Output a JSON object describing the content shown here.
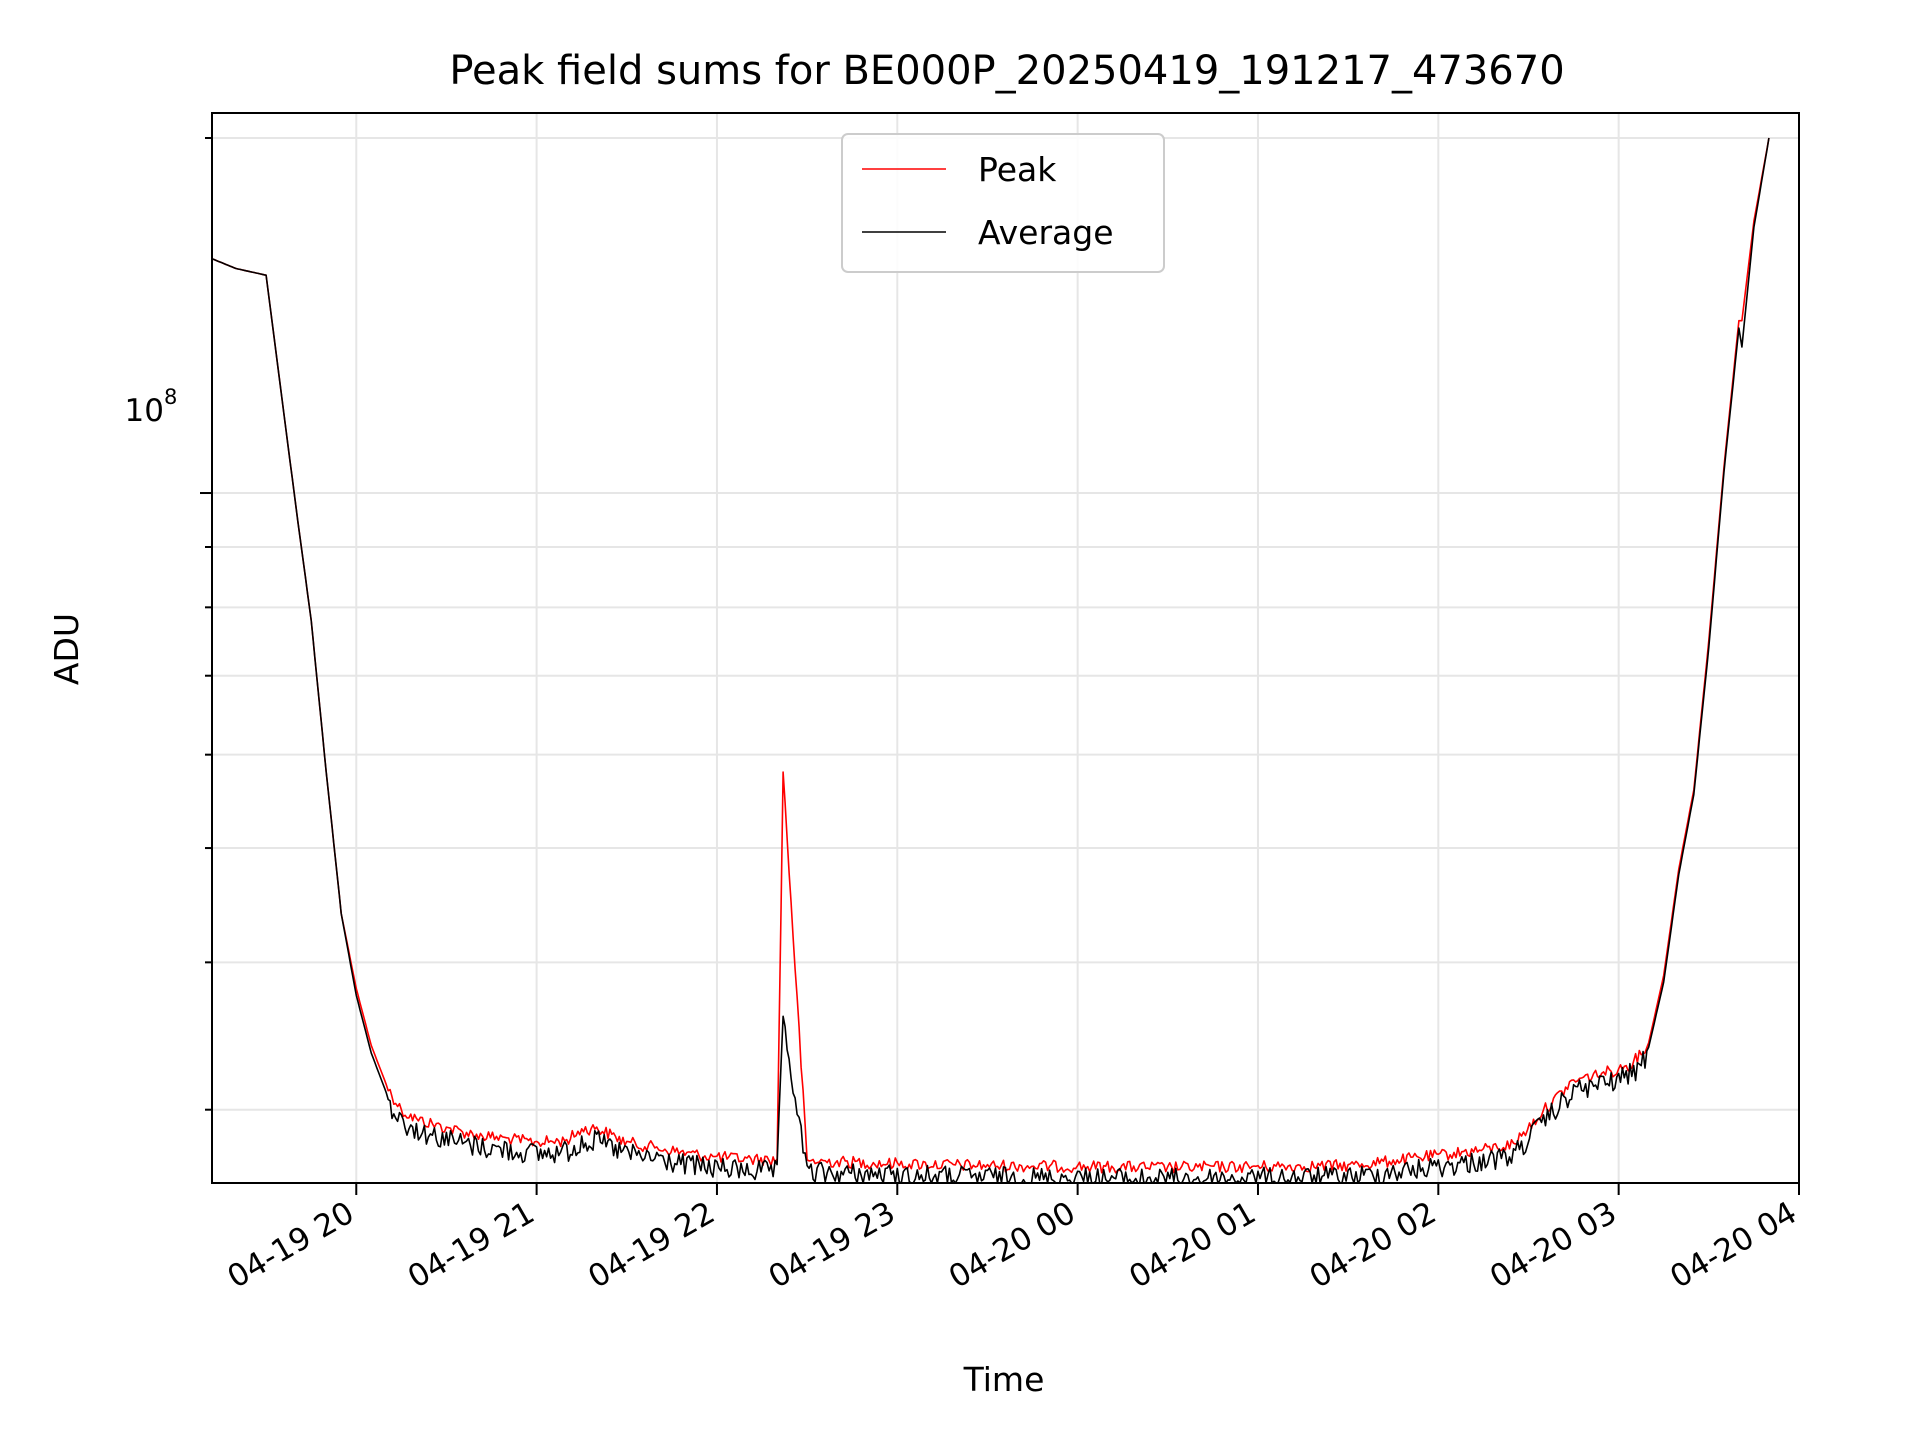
{
  "chart_data": {
    "type": "line",
    "title": "Peak field sums for BE000P_20250419_191217_473670",
    "xlabel": "Time",
    "ylabel": "ADU",
    "y_scale": "log",
    "y_tick_label": {
      "base": "10",
      "exponent": "8"
    },
    "x_ticks": [
      "04-19 20",
      "04-19 21",
      "04-19 22",
      "04-19 23",
      "04-20 00",
      "04-20 01",
      "04-20 02",
      "04-20 03",
      "04-20 04"
    ],
    "xlim": [
      "2025-04-19 19:12",
      "2025-04-20 04:00"
    ],
    "ylim": [
      26000000,
      210000000
    ],
    "grid": true,
    "legend_position": "upper center",
    "series": [
      {
        "name": "Peak",
        "color": "#ff0000",
        "x": [
          "2025-04-19 19:12",
          "2025-04-19 19:20",
          "2025-04-19 19:30",
          "2025-04-19 19:40",
          "2025-04-19 19:45",
          "2025-04-19 19:50",
          "2025-04-19 19:55",
          "2025-04-19 20:00",
          "2025-04-19 20:05",
          "2025-04-19 20:10",
          "2025-04-19 20:15",
          "2025-04-19 20:20",
          "2025-04-19 20:30",
          "2025-04-19 20:40",
          "2025-04-19 20:50",
          "2025-04-19 21:00",
          "2025-04-19 21:10",
          "2025-04-19 21:15",
          "2025-04-19 21:20",
          "2025-04-19 21:25",
          "2025-04-19 21:30",
          "2025-04-19 21:40",
          "2025-04-19 21:50",
          "2025-04-19 22:00",
          "2025-04-19 22:10",
          "2025-04-19 22:20",
          "2025-04-19 22:22",
          "2025-04-19 22:30",
          "2025-04-19 23:00",
          "2025-04-19 23:30",
          "2025-04-20 00:00",
          "2025-04-20 00:30",
          "2025-04-20 01:00",
          "2025-04-20 01:30",
          "2025-04-20 01:45",
          "2025-04-20 02:00",
          "2025-04-20 02:15",
          "2025-04-20 02:25",
          "2025-04-20 02:35",
          "2025-04-20 02:45",
          "2025-04-20 02:55",
          "2025-04-20 03:00",
          "2025-04-20 03:05",
          "2025-04-20 03:10",
          "2025-04-20 03:15",
          "2025-04-20 03:20",
          "2025-04-20 03:25",
          "2025-04-20 03:30",
          "2025-04-20 03:35",
          "2025-04-20 03:40",
          "2025-04-20 03:41",
          "2025-04-20 03:45",
          "2025-04-20 03:50"
        ],
        "y": [
          158000000,
          155000000,
          153000000,
          97000000,
          78000000,
          58000000,
          44000000,
          38000000,
          34000000,
          31500000,
          30000000,
          29500000,
          29000000,
          28600000,
          28400000,
          28200000,
          28300000,
          28900000,
          29000000,
          28600000,
          28200000,
          27900000,
          27600000,
          27400000,
          27300000,
          27250000,
          58000000,
          27200000,
          27050000,
          26950000,
          26900000,
          26850000,
          26900000,
          26950000,
          27200000,
          27500000,
          27800000,
          28100000,
          30000000,
          31800000,
          32300000,
          32500000,
          33000000,
          34200000,
          39000000,
          48000000,
          56000000,
          75000000,
          105000000,
          140000000,
          140000000,
          170000000,
          200000000
        ]
      },
      {
        "name": "Average",
        "color": "#000000",
        "x": [
          "2025-04-19 19:12",
          "2025-04-19 19:20",
          "2025-04-19 19:30",
          "2025-04-19 19:40",
          "2025-04-19 19:45",
          "2025-04-19 19:50",
          "2025-04-19 19:55",
          "2025-04-19 20:00",
          "2025-04-19 20:05",
          "2025-04-19 20:10",
          "2025-04-19 20:15",
          "2025-04-19 20:20",
          "2025-04-19 20:30",
          "2025-04-19 20:40",
          "2025-04-19 20:50",
          "2025-04-19 21:00",
          "2025-04-19 21:10",
          "2025-04-19 21:15",
          "2025-04-19 21:20",
          "2025-04-19 21:25",
          "2025-04-19 21:30",
          "2025-04-19 21:40",
          "2025-04-19 21:50",
          "2025-04-19 22:00",
          "2025-04-19 22:10",
          "2025-04-19 22:20",
          "2025-04-19 22:22",
          "2025-04-19 22:30",
          "2025-04-19 23:00",
          "2025-04-19 23:30",
          "2025-04-20 00:00",
          "2025-04-20 00:30",
          "2025-04-20 01:00",
          "2025-04-20 01:30",
          "2025-04-20 01:45",
          "2025-04-20 02:00",
          "2025-04-20 02:15",
          "2025-04-20 02:25",
          "2025-04-20 02:35",
          "2025-04-20 02:45",
          "2025-04-20 02:55",
          "2025-04-20 03:00",
          "2025-04-20 03:05",
          "2025-04-20 03:10",
          "2025-04-20 03:15",
          "2025-04-20 03:20",
          "2025-04-20 03:25",
          "2025-04-20 03:30",
          "2025-04-20 03:35",
          "2025-04-20 03:40",
          "2025-04-20 03:41",
          "2025-04-20 03:45",
          "2025-04-20 03:50"
        ],
        "y": [
          158000000,
          155000000,
          153000000,
          97000000,
          78000000,
          58000000,
          44000000,
          37500000,
          33500000,
          31000000,
          29700000,
          29200000,
          28700000,
          28300000,
          28100000,
          27900000,
          28000000,
          28500000,
          28600000,
          28200000,
          27900000,
          27600000,
          27300000,
          27100000,
          27000000,
          26950000,
          36000000,
          26900000,
          26750000,
          26650000,
          26600000,
          26550000,
          26600000,
          26650000,
          26900000,
          27200000,
          27500000,
          27800000,
          29700000,
          31500000,
          32000000,
          32200000,
          32700000,
          33900000,
          38500000,
          47500000,
          55500000,
          74000000,
          104000000,
          138000000,
          133000000,
          168000000,
          200000000
        ]
      }
    ]
  }
}
